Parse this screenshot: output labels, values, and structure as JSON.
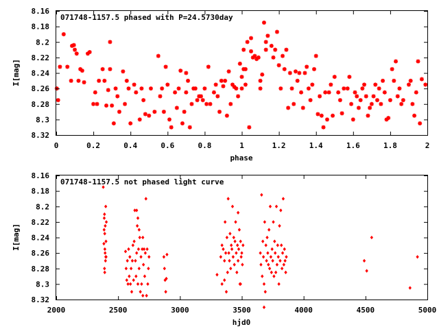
{
  "chart_data": [
    {
      "type": "scatter",
      "title": "071748-1157.5 phased with P=24.5730day",
      "xlabel": "phase",
      "ylabel": "I[mag]",
      "xlim": [
        0,
        2
      ],
      "ylim": [
        8.32,
        8.16
      ],
      "y_inverted": true,
      "xticks": [
        "0",
        "0.2",
        "0.4",
        "0.6",
        "0.8",
        "1",
        "1.2",
        "1.4",
        "1.6",
        "1.8",
        "2"
      ],
      "yticks": [
        "8.16",
        "8.18",
        "8.2",
        "8.22",
        "8.24",
        "8.26",
        "8.28",
        "8.3",
        "8.32"
      ],
      "grid": false,
      "marker": "star",
      "color": "#ff0000",
      "points": [
        [
          0.003,
          8.26
        ],
        [
          0.01,
          8.275
        ],
        [
          0.02,
          8.232
        ],
        [
          0.04,
          8.19
        ],
        [
          0.06,
          8.232
        ],
        [
          0.08,
          8.25
        ],
        [
          0.085,
          8.205
        ],
        [
          0.095,
          8.204
        ],
        [
          0.1,
          8.21
        ],
        [
          0.11,
          8.215
        ],
        [
          0.12,
          8.25
        ],
        [
          0.13,
          8.235
        ],
        [
          0.14,
          8.237
        ],
        [
          0.15,
          8.252
        ],
        [
          0.17,
          8.215
        ],
        [
          0.18,
          8.213
        ],
        [
          0.2,
          8.28
        ],
        [
          0.21,
          8.265
        ],
        [
          0.22,
          8.28
        ],
        [
          0.23,
          8.25
        ],
        [
          0.25,
          8.235
        ],
        [
          0.26,
          8.25
        ],
        [
          0.27,
          8.282
        ],
        [
          0.28,
          8.262
        ],
        [
          0.29,
          8.235
        ],
        [
          0.29,
          8.2
        ],
        [
          0.3,
          8.282
        ],
        [
          0.31,
          8.305
        ],
        [
          0.32,
          8.26
        ],
        [
          0.33,
          8.27
        ],
        [
          0.34,
          8.29
        ],
        [
          0.36,
          8.238
        ],
        [
          0.37,
          8.28
        ],
        [
          0.38,
          8.25
        ],
        [
          0.39,
          8.26
        ],
        [
          0.4,
          8.305
        ],
        [
          0.42,
          8.255
        ],
        [
          0.43,
          8.265
        ],
        [
          0.45,
          8.3
        ],
        [
          0.46,
          8.26
        ],
        [
          0.47,
          8.275
        ],
        [
          0.48,
          8.293
        ],
        [
          0.5,
          8.295
        ],
        [
          0.51,
          8.26
        ],
        [
          0.53,
          8.29
        ],
        [
          0.55,
          8.218
        ],
        [
          0.56,
          8.27
        ],
        [
          0.57,
          8.26
        ],
        [
          0.58,
          8.29
        ],
        [
          0.59,
          8.232
        ],
        [
          0.6,
          8.255
        ],
        [
          0.61,
          8.3
        ],
        [
          0.62,
          8.31
        ],
        [
          0.64,
          8.265
        ],
        [
          0.65,
          8.285
        ],
        [
          0.66,
          8.26
        ],
        [
          0.67,
          8.237
        ],
        [
          0.68,
          8.305
        ],
        [
          0.69,
          8.29
        ],
        [
          0.7,
          8.265
        ],
        [
          0.7,
          8.24
        ],
        [
          0.71,
          8.25
        ],
        [
          0.72,
          8.31
        ],
        [
          0.73,
          8.28
        ],
        [
          0.74,
          8.26
        ],
        [
          0.75,
          8.26
        ],
        [
          0.76,
          8.275
        ],
        [
          0.77,
          8.27
        ],
        [
          0.78,
          8.27
        ],
        [
          0.79,
          8.275
        ],
        [
          0.8,
          8.26
        ],
        [
          0.81,
          8.28
        ],
        [
          0.82,
          8.232
        ],
        [
          0.83,
          8.28
        ],
        [
          0.85,
          8.265
        ],
        [
          0.86,
          8.255
        ],
        [
          0.87,
          8.27
        ],
        [
          0.88,
          8.29
        ],
        [
          0.89,
          8.25
        ],
        [
          0.9,
          8.257
        ],
        [
          0.91,
          8.25
        ],
        [
          0.92,
          8.295
        ],
        [
          0.93,
          8.238
        ],
        [
          0.94,
          8.28
        ],
        [
          0.95,
          8.255
        ],
        [
          0.96,
          8.258
        ],
        [
          0.97,
          8.26
        ],
        [
          0.98,
          8.27
        ],
        [
          0.99,
          8.228
        ],
        [
          1.0,
          8.245
        ],
        [
          1.0,
          8.26
        ],
        [
          1.01,
          8.235
        ],
        [
          1.01,
          8.21
        ],
        [
          1.02,
          8.235
        ],
        [
          1.02,
          8.255
        ],
        [
          1.03,
          8.2
        ],
        [
          1.04,
          8.31
        ],
        [
          1.05,
          8.195
        ],
        [
          1.05,
          8.212
        ],
        [
          1.06,
          8.22
        ],
        [
          1.07,
          8.218
        ],
        [
          1.08,
          8.222
        ],
        [
          1.09,
          8.22
        ],
        [
          1.1,
          8.25
        ],
        [
          1.1,
          8.26
        ],
        [
          1.11,
          8.242
        ],
        [
          1.12,
          8.175
        ],
        [
          1.13,
          8.21
        ],
        [
          1.13,
          8.2
        ],
        [
          1.14,
          8.192
        ],
        [
          1.16,
          8.205
        ],
        [
          1.17,
          8.22
        ],
        [
          1.18,
          8.21
        ],
        [
          1.19,
          8.187
        ],
        [
          1.2,
          8.23
        ],
        [
          1.21,
          8.26
        ],
        [
          1.22,
          8.218
        ],
        [
          1.23,
          8.235
        ],
        [
          1.24,
          8.21
        ],
        [
          1.25,
          8.285
        ],
        [
          1.26,
          8.24
        ],
        [
          1.27,
          8.26
        ],
        [
          1.28,
          8.28
        ],
        [
          1.29,
          8.238
        ],
        [
          1.3,
          8.25
        ],
        [
          1.31,
          8.24
        ],
        [
          1.32,
          8.265
        ],
        [
          1.33,
          8.285
        ],
        [
          1.34,
          8.24
        ],
        [
          1.35,
          8.232
        ],
        [
          1.36,
          8.26
        ],
        [
          1.37,
          8.275
        ],
        [
          1.38,
          8.255
        ],
        [
          1.39,
          8.235
        ],
        [
          1.4,
          8.218
        ],
        [
          1.41,
          8.293
        ],
        [
          1.42,
          8.27
        ],
        [
          1.43,
          8.295
        ],
        [
          1.44,
          8.31
        ],
        [
          1.45,
          8.265
        ],
        [
          1.46,
          8.3
        ],
        [
          1.47,
          8.265
        ],
        [
          1.48,
          8.255
        ],
        [
          1.49,
          8.295
        ],
        [
          1.5,
          8.245
        ],
        [
          1.52,
          8.265
        ],
        [
          1.53,
          8.275
        ],
        [
          1.54,
          8.292
        ],
        [
          1.55,
          8.26
        ],
        [
          1.57,
          8.26
        ],
        [
          1.58,
          8.245
        ],
        [
          1.59,
          8.28
        ],
        [
          1.6,
          8.3
        ],
        [
          1.61,
          8.265
        ],
        [
          1.62,
          8.27
        ],
        [
          1.63,
          8.285
        ],
        [
          1.64,
          8.275
        ],
        [
          1.65,
          8.26
        ],
        [
          1.66,
          8.255
        ],
        [
          1.67,
          8.27
        ],
        [
          1.68,
          8.295
        ],
        [
          1.69,
          8.285
        ],
        [
          1.7,
          8.28
        ],
        [
          1.71,
          8.27
        ],
        [
          1.72,
          8.255
        ],
        [
          1.73,
          8.275
        ],
        [
          1.74,
          8.26
        ],
        [
          1.75,
          8.28
        ],
        [
          1.76,
          8.25
        ],
        [
          1.77,
          8.265
        ],
        [
          1.78,
          8.3
        ],
        [
          1.79,
          8.298
        ],
        [
          1.8,
          8.275
        ],
        [
          1.81,
          8.235
        ],
        [
          1.82,
          8.25
        ],
        [
          1.83,
          8.225
        ],
        [
          1.84,
          8.27
        ],
        [
          1.85,
          8.26
        ],
        [
          1.86,
          8.28
        ],
        [
          1.87,
          8.275
        ],
        [
          1.9,
          8.255
        ],
        [
          1.91,
          8.25
        ],
        [
          1.92,
          8.28
        ],
        [
          1.93,
          8.295
        ],
        [
          1.94,
          8.265
        ],
        [
          1.95,
          8.225
        ],
        [
          1.96,
          8.305
        ],
        [
          1.97,
          8.248
        ],
        [
          1.99,
          8.255
        ]
      ]
    },
    {
      "type": "scatter",
      "title": "071748-1157.5 not phased light curve",
      "xlabel": "hjd0",
      "ylabel": "I[mag]",
      "xlim": [
        2000,
        5000
      ],
      "ylim": [
        8.32,
        8.16
      ],
      "y_inverted": true,
      "xticks": [
        "2000",
        "2500",
        "3000",
        "3500",
        "4000",
        "4500",
        "5000"
      ],
      "yticks": [
        "8.16",
        "8.18",
        "8.2",
        "8.22",
        "8.24",
        "8.26",
        "8.28",
        "8.3",
        "8.32"
      ],
      "grid": false,
      "marker": "diamond",
      "color": "#ff0000",
      "points": [
        [
          2380,
          8.175
        ],
        [
          2385,
          8.248
        ],
        [
          2387,
          8.23
        ],
        [
          2388,
          8.215
        ],
        [
          2390,
          8.21
        ],
        [
          2392,
          8.235
        ],
        [
          2393,
          8.255
        ],
        [
          2395,
          8.26
        ],
        [
          2396,
          8.225
        ],
        [
          2398,
          8.27
        ],
        [
          2400,
          8.2
        ],
        [
          2402,
          8.245
        ],
        [
          2403,
          8.265
        ],
        [
          2405,
          8.22
        ],
        [
          2390,
          8.28
        ],
        [
          2392,
          8.285
        ],
        [
          2400,
          8.265
        ],
        [
          2560,
          8.258
        ],
        [
          2565,
          8.28
        ],
        [
          2570,
          8.295
        ],
        [
          2575,
          8.27
        ],
        [
          2580,
          8.3
        ],
        [
          2585,
          8.255
        ],
        [
          2590,
          8.29
        ],
        [
          2595,
          8.265
        ],
        [
          2600,
          8.3
        ],
        [
          2605,
          8.28
        ],
        [
          2610,
          8.31
        ],
        [
          2615,
          8.27
        ],
        [
          2620,
          8.25
        ],
        [
          2625,
          8.295
        ],
        [
          2630,
          8.245
        ],
        [
          2635,
          8.205
        ],
        [
          2640,
          8.27
        ],
        [
          2645,
          8.29
        ],
        [
          2650,
          8.26
        ],
        [
          2655,
          8.225
        ],
        [
          2660,
          8.3
        ],
        [
          2665,
          8.255
        ],
        [
          2670,
          8.28
        ],
        [
          2675,
          8.24
        ],
        [
          2680,
          8.31
        ],
        [
          2685,
          8.265
        ],
        [
          2690,
          8.3
        ],
        [
          2695,
          8.255
        ],
        [
          2700,
          8.315
        ],
        [
          2705,
          8.275
        ],
        [
          2710,
          8.255
        ],
        [
          2715,
          8.29
        ],
        [
          2720,
          8.26
        ],
        [
          2725,
          8.19
        ],
        [
          2730,
          8.315
        ],
        [
          2735,
          8.255
        ],
        [
          2740,
          8.3
        ],
        [
          2745,
          8.28
        ],
        [
          2750,
          8.265
        ],
        [
          2650,
          8.205
        ],
        [
          2660,
          8.215
        ],
        [
          2670,
          8.23
        ],
        [
          2700,
          8.24
        ],
        [
          2870,
          8.265
        ],
        [
          2875,
          8.28
        ],
        [
          2880,
          8.295
        ],
        [
          2885,
          8.31
        ],
        [
          2890,
          8.293
        ],
        [
          2895,
          8.262
        ],
        [
          3300,
          8.288
        ],
        [
          3330,
          8.265
        ],
        [
          3340,
          8.25
        ],
        [
          3350,
          8.255
        ],
        [
          3360,
          8.27
        ],
        [
          3365,
          8.22
        ],
        [
          3370,
          8.26
        ],
        [
          3375,
          8.31
        ],
        [
          3380,
          8.24
        ],
        [
          3385,
          8.285
        ],
        [
          3390,
          8.19
        ],
        [
          3395,
          8.26
        ],
        [
          3400,
          8.27
        ],
        [
          3405,
          8.235
        ],
        [
          3410,
          8.28
        ],
        [
          3415,
          8.25
        ],
        [
          3420,
          8.255
        ],
        [
          3425,
          8.2
        ],
        [
          3430,
          8.265
        ],
        [
          3435,
          8.24
        ],
        [
          3440,
          8.275
        ],
        [
          3445,
          8.245
        ],
        [
          3450,
          8.22
        ],
        [
          3455,
          8.26
        ],
        [
          3460,
          8.285
        ],
        [
          3465,
          8.25
        ],
        [
          3470,
          8.27
        ],
        [
          3475,
          8.255
        ],
        [
          3480,
          8.23
        ],
        [
          3485,
          8.3
        ],
        [
          3490,
          8.245
        ],
        [
          3495,
          8.265
        ],
        [
          3500,
          8.26
        ],
        [
          3505,
          8.275
        ],
        [
          3510,
          8.25
        ],
        [
          3340,
          8.3
        ],
        [
          3360,
          8.295
        ],
        [
          3470,
          8.208
        ],
        [
          3490,
          8.3
        ],
        [
          3650,
          8.26
        ],
        [
          3655,
          8.275
        ],
        [
          3660,
          8.185
        ],
        [
          3665,
          8.29
        ],
        [
          3670,
          8.245
        ],
        [
          3675,
          8.265
        ],
        [
          3680,
          8.3
        ],
        [
          3685,
          8.22
        ],
        [
          3690,
          8.31
        ],
        [
          3695,
          8.25
        ],
        [
          3700,
          8.27
        ],
        [
          3705,
          8.24
        ],
        [
          3710,
          8.26
        ],
        [
          3715,
          8.275
        ],
        [
          3720,
          8.23
        ],
        [
          3725,
          8.28
        ],
        [
          3730,
          8.2
        ],
        [
          3735,
          8.265
        ],
        [
          3740,
          8.285
        ],
        [
          3745,
          8.255
        ],
        [
          3750,
          8.27
        ],
        [
          3755,
          8.22
        ],
        [
          3760,
          8.29
        ],
        [
          3765,
          8.245
        ],
        [
          3770,
          8.26
        ],
        [
          3775,
          8.285
        ],
        [
          3780,
          8.2
        ],
        [
          3785,
          8.275
        ],
        [
          3790,
          8.25
        ],
        [
          3795,
          8.265
        ],
        [
          3800,
          8.3
        ],
        [
          3805,
          8.225
        ],
        [
          3810,
          8.27
        ],
        [
          3815,
          8.205
        ],
        [
          3820,
          8.25
        ],
        [
          3825,
          8.28
        ],
        [
          3830,
          8.26
        ],
        [
          3835,
          8.19
        ],
        [
          3840,
          8.275
        ],
        [
          3845,
          8.255
        ],
        [
          3850,
          8.27
        ],
        [
          3855,
          8.285
        ],
        [
          3860,
          8.265
        ],
        [
          3680,
          8.33
        ],
        [
          4490,
          8.27
        ],
        [
          4510,
          8.283
        ],
        [
          4550,
          8.24
        ],
        [
          4860,
          8.305
        ],
        [
          4920,
          8.265
        ]
      ]
    }
  ]
}
